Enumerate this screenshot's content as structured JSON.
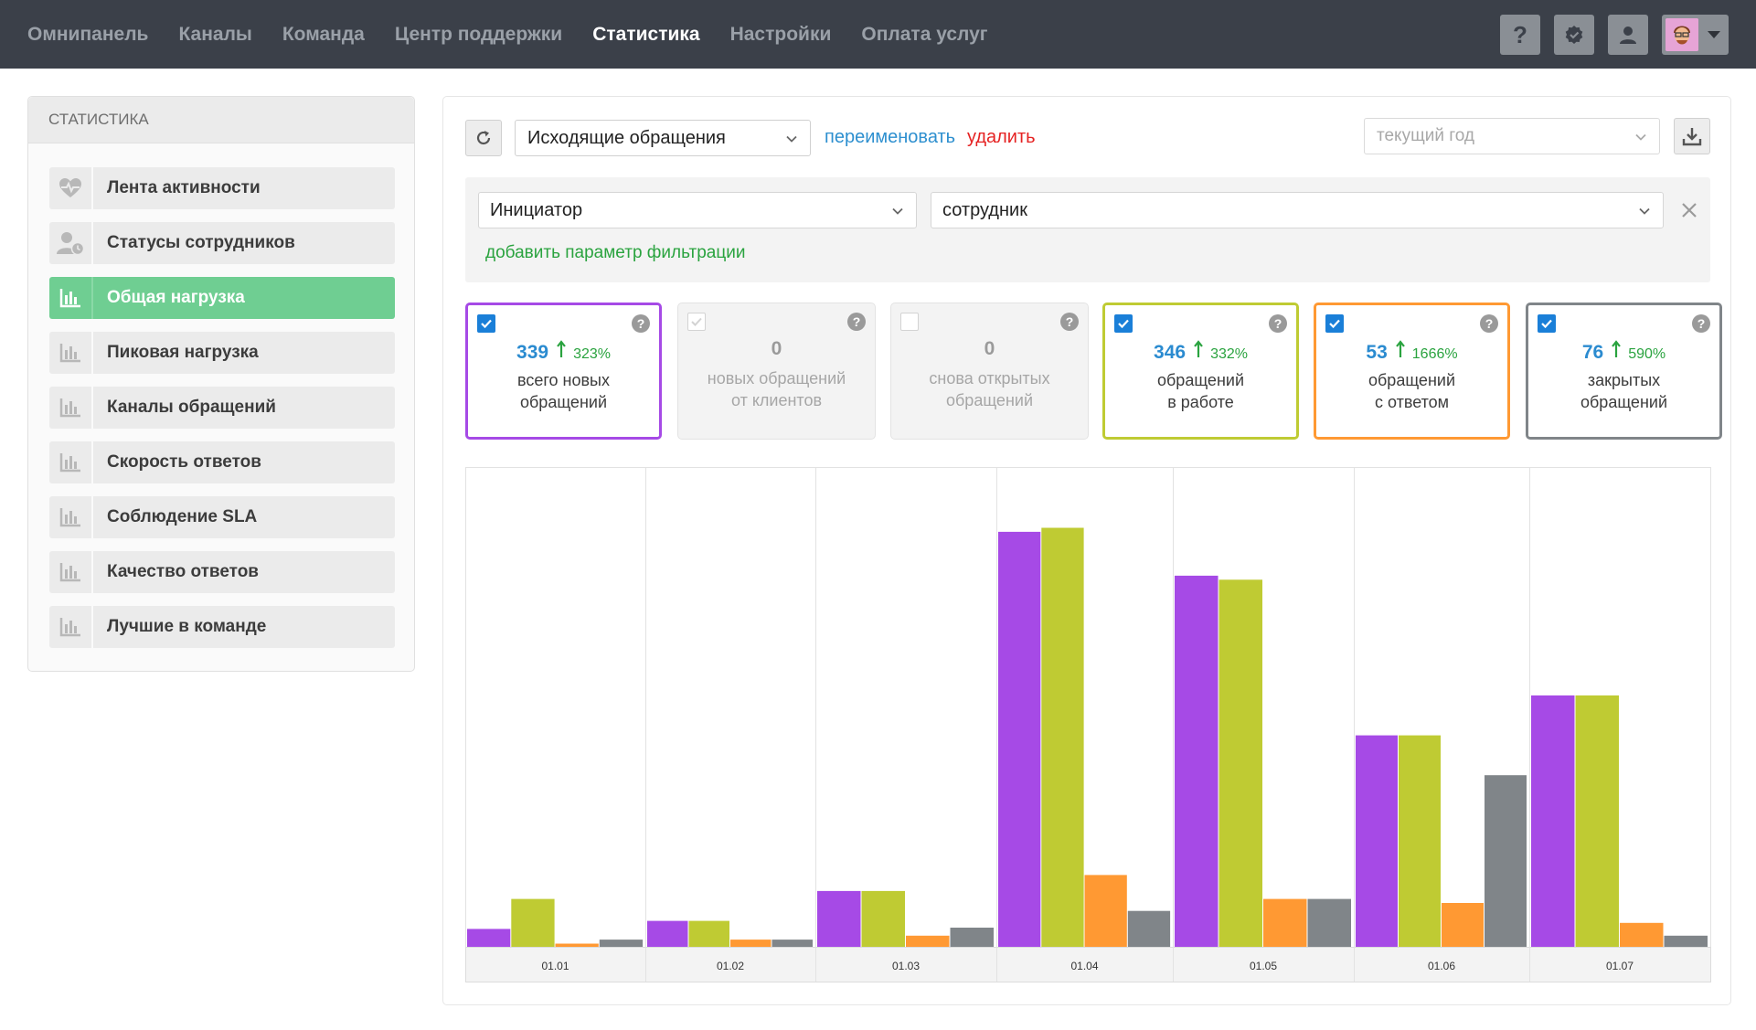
{
  "nav": {
    "items": [
      {
        "label": "Омнипанель",
        "active": false
      },
      {
        "label": "Каналы",
        "active": false
      },
      {
        "label": "Команда",
        "active": false
      },
      {
        "label": "Центр поддержки",
        "active": false
      },
      {
        "label": "Статистика",
        "active": true
      },
      {
        "label": "Настройки",
        "active": false
      },
      {
        "label": "Оплата услуг",
        "active": false
      }
    ],
    "help_label": "?"
  },
  "sidebar": {
    "header": "СТАТИСТИКА",
    "items": [
      {
        "label": "Лента активности",
        "icon": "heartbeat-icon",
        "active": false
      },
      {
        "label": "Статусы сотрудников",
        "icon": "user-clock-icon",
        "active": false
      },
      {
        "label": "Общая нагрузка",
        "icon": "bar-chart-icon",
        "active": true
      },
      {
        "label": "Пиковая нагрузка",
        "icon": "bar-chart-icon",
        "active": false
      },
      {
        "label": "Каналы обращений",
        "icon": "bar-chart-icon",
        "active": false
      },
      {
        "label": "Скорость ответов",
        "icon": "bar-chart-icon",
        "active": false
      },
      {
        "label": "Соблюдение SLA",
        "icon": "bar-chart-icon",
        "active": false
      },
      {
        "label": "Качество ответов",
        "icon": "bar-chart-icon",
        "active": false
      },
      {
        "label": "Лучшие в команде",
        "icon": "bar-chart-icon",
        "active": false
      }
    ]
  },
  "toolbar": {
    "report_value": "Исходящие обращения",
    "rename_label": "переименовать",
    "delete_label": "удалить",
    "period_placeholder": "текущий год"
  },
  "filter": {
    "param_value": "Инициатор",
    "value_value": "сотрудник",
    "add_label": "добавить параметр фильтрации"
  },
  "cards": [
    {
      "value": "339",
      "percent": "323%",
      "line1": "всего новых",
      "line2": "обращений",
      "checked": true,
      "enabled": true,
      "color": "#a64ae6"
    },
    {
      "value": "0",
      "percent": "",
      "line1": "новых обращений",
      "line2": "от клиентов",
      "checked": true,
      "enabled": false,
      "color": "#e3e3e3"
    },
    {
      "value": "0",
      "percent": "",
      "line1": "снова открытых",
      "line2": "обращений",
      "checked": false,
      "enabled": false,
      "color": "#e3e3e3"
    },
    {
      "value": "346",
      "percent": "332%",
      "line1": "обращений",
      "line2": "в работе",
      "checked": true,
      "enabled": true,
      "color": "#bfcb33"
    },
    {
      "value": "53",
      "percent": "1666%",
      "line1": "обращений",
      "line2": "с ответом",
      "checked": true,
      "enabled": true,
      "color": "#ff9933"
    },
    {
      "value": "76",
      "percent": "590%",
      "line1": "закрытых",
      "line2": "обращений",
      "checked": true,
      "enabled": true,
      "color": "#808589"
    }
  ],
  "chart_data": {
    "type": "bar",
    "categories": [
      "01.01",
      "01.02",
      "01.03",
      "01.04",
      "01.05",
      "01.06",
      "01.07"
    ],
    "ylim": [
      0,
      120
    ],
    "grid": false,
    "series": [
      {
        "values": [
          4.5,
          6.5,
          14,
          104,
          93,
          53,
          63
        ],
        "color": "#a64ae6"
      },
      {
        "values": [
          12,
          6.5,
          14,
          105,
          92,
          53,
          63
        ],
        "color": "#bfcb33"
      },
      {
        "values": [
          0.8,
          1.8,
          2.8,
          18,
          12,
          11,
          6
        ],
        "color": "#ff9933"
      },
      {
        "values": [
          1.8,
          1.8,
          4.8,
          9,
          12,
          43,
          2.8
        ],
        "color": "#808589"
      }
    ]
  }
}
